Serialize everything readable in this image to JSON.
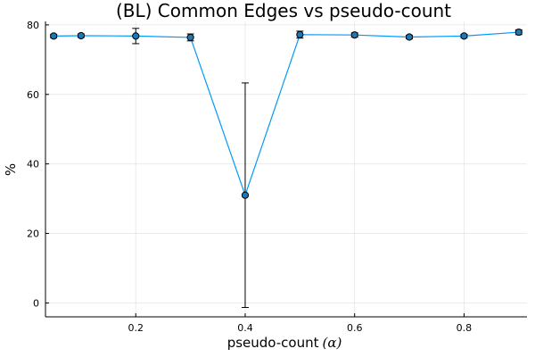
{
  "chart_data": {
    "type": "line",
    "title": "(BL) Common Edges vs pseudo-count",
    "xlabel": "pseudo-count",
    "xlabel_math": "(α)",
    "ylabel": "%",
    "xlim": [
      0.035,
      0.915
    ],
    "ylim": [
      -4,
      81
    ],
    "xticks": [
      0.2,
      0.4,
      0.6,
      0.8
    ],
    "xtick_labels": [
      "0.2",
      "0.4",
      "0.6",
      "0.8"
    ],
    "yticks": [
      0,
      20,
      40,
      60,
      80
    ],
    "ytick_labels": [
      "0",
      "20",
      "40",
      "60",
      "80"
    ],
    "grid": true,
    "legend": "none",
    "series": [
      {
        "color": "#009AFA",
        "marker_color": "#1F77B4",
        "x": [
          0.05,
          0.1,
          0.2,
          0.3,
          0.4,
          0.5,
          0.6,
          0.7,
          0.8,
          0.9
        ],
        "y": [
          76.8,
          76.9,
          76.8,
          76.4,
          31.0,
          77.2,
          77.1,
          76.5,
          76.8,
          77.9
        ],
        "yerr": [
          0.5,
          0.5,
          2.2,
          1.0,
          32.3,
          1.0,
          0.6,
          0.5,
          0.5,
          0.7
        ]
      }
    ]
  }
}
